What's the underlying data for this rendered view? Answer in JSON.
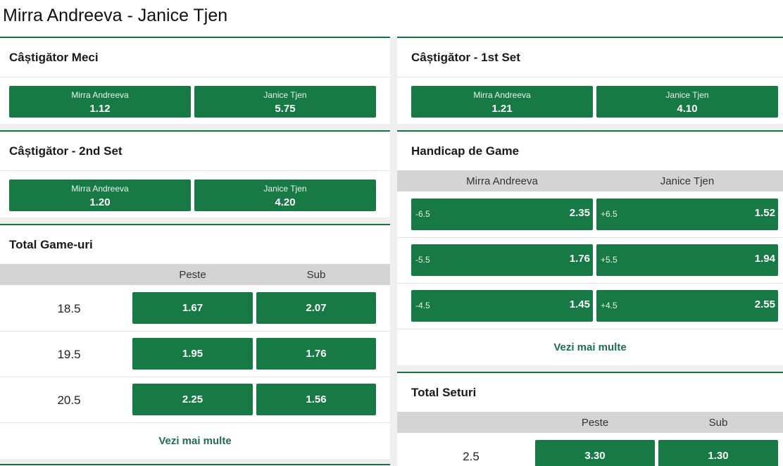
{
  "page": {
    "title": "Mirra Andreeva - Janice Tjen"
  },
  "colors": {
    "odds_green": "#177a45",
    "header_border": "#13743f",
    "subheader_gray": "#d4d4d4",
    "link_green": "#1d6e4c"
  },
  "markets": {
    "match_winner": {
      "title": "Câștigător Meci",
      "outcomes": [
        {
          "label": "Mirra Andreeva",
          "odds": "1.12"
        },
        {
          "label": "Janice Tjen",
          "odds": "5.75"
        }
      ]
    },
    "set1_winner": {
      "title": "Câștigător - 1st Set",
      "outcomes": [
        {
          "label": "Mirra Andreeva",
          "odds": "1.21"
        },
        {
          "label": "Janice Tjen",
          "odds": "4.10"
        }
      ]
    },
    "set2_winner": {
      "title": "Câștigător - 2nd Set",
      "outcomes": [
        {
          "label": "Mirra Andreeva",
          "odds": "1.20"
        },
        {
          "label": "Janice Tjen",
          "odds": "4.20"
        }
      ]
    },
    "game_handicap": {
      "title": "Handicap de Game",
      "columns": [
        "Mirra Andreeva",
        "Janice Tjen"
      ],
      "rows": [
        {
          "home_line": "-6.5",
          "home_odds": "2.35",
          "away_line": "+6.5",
          "away_odds": "1.52"
        },
        {
          "home_line": "-5.5",
          "home_odds": "1.76",
          "away_line": "+5.5",
          "away_odds": "1.94"
        },
        {
          "home_line": "-4.5",
          "home_odds": "1.45",
          "away_line": "+4.5",
          "away_odds": "2.55"
        }
      ],
      "more_label": "Vezi mai multe"
    },
    "total_games": {
      "title": "Total Game-uri",
      "columns": [
        "Peste",
        "Sub"
      ],
      "rows": [
        {
          "line": "18.5",
          "over": "1.67",
          "under": "2.07"
        },
        {
          "line": "19.5",
          "over": "1.95",
          "under": "1.76"
        },
        {
          "line": "20.5",
          "over": "2.25",
          "under": "1.56"
        }
      ],
      "more_label": "Vezi mai multe"
    },
    "total_sets": {
      "title": "Total Seturi",
      "columns": [
        "Peste",
        "Sub"
      ],
      "rows": [
        {
          "line": "2.5",
          "over": "3.30",
          "under": "1.30"
        }
      ]
    }
  }
}
